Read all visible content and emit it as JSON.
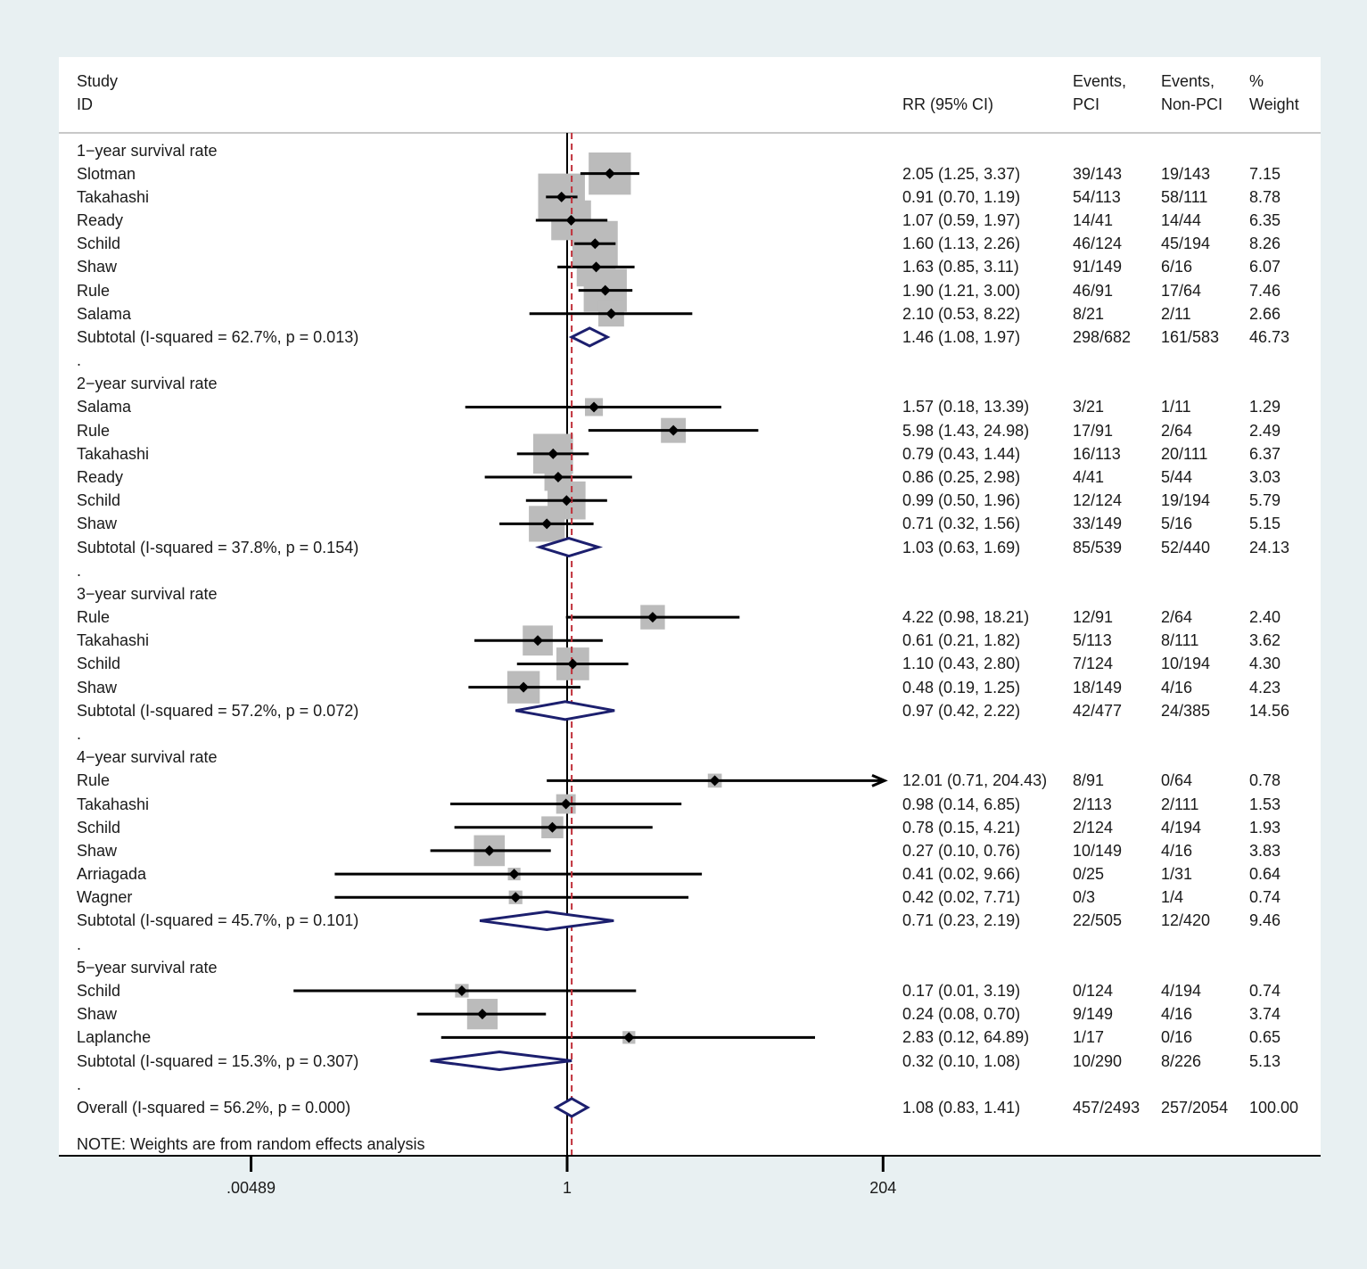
{
  "chart_data": {
    "type": "forest",
    "headers": {
      "study_line1": "Study",
      "study_line2": "ID",
      "rr": "RR (95% CI)",
      "events_pci_line1": "Events,",
      "events_pci_line2": "PCI",
      "events_nonpci_line1": "Events,",
      "events_nonpci_line2": "Non-PCI",
      "weight_line1": "%",
      "weight_line2": "Weight"
    },
    "x_scale": "log",
    "x_ticks": [
      {
        "value": 0.00489,
        "label": ".00489"
      },
      {
        "value": 1,
        "label": "1"
      },
      {
        "value": 204,
        "label": "204"
      }
    ],
    "reference_line": 1,
    "overall_line": 1.08,
    "rows": [
      {
        "kind": "group",
        "label": "1−year survival rate"
      },
      {
        "kind": "study",
        "label": "Slotman",
        "rr": 2.05,
        "lo": 1.25,
        "hi": 3.37,
        "ci_text": "2.05 (1.25, 3.37)",
        "ev_pci": "39/143",
        "ev_non": "19/143",
        "weight": "7.15",
        "w": 7.15
      },
      {
        "kind": "study",
        "label": "Takahashi",
        "rr": 0.91,
        "lo": 0.7,
        "hi": 1.19,
        "ci_text": "0.91 (0.70, 1.19)",
        "ev_pci": "54/113",
        "ev_non": "58/111",
        "weight": "8.78",
        "w": 8.78
      },
      {
        "kind": "study",
        "label": "Ready",
        "rr": 1.07,
        "lo": 0.59,
        "hi": 1.97,
        "ci_text": "1.07 (0.59, 1.97)",
        "ev_pci": "14/41",
        "ev_non": "14/44",
        "weight": "6.35",
        "w": 6.35
      },
      {
        "kind": "study",
        "label": "Schild",
        "rr": 1.6,
        "lo": 1.13,
        "hi": 2.26,
        "ci_text": "1.60 (1.13, 2.26)",
        "ev_pci": "46/124",
        "ev_non": "45/194",
        "weight": "8.26",
        "w": 8.26
      },
      {
        "kind": "study",
        "label": "Shaw",
        "rr": 1.63,
        "lo": 0.85,
        "hi": 3.11,
        "ci_text": "1.63 (0.85, 3.11)",
        "ev_pci": "91/149",
        "ev_non": "6/16",
        "weight": "6.07",
        "w": 6.07
      },
      {
        "kind": "study",
        "label": "Rule",
        "rr": 1.9,
        "lo": 1.21,
        "hi": 3.0,
        "ci_text": "1.90 (1.21, 3.00)",
        "ev_pci": "46/91",
        "ev_non": "17/64",
        "weight": "7.46",
        "w": 7.46
      },
      {
        "kind": "study",
        "label": "Salama",
        "rr": 2.1,
        "lo": 0.53,
        "hi": 8.22,
        "ci_text": "2.10 (0.53, 8.22)",
        "ev_pci": "8/21",
        "ev_non": "2/11",
        "weight": "2.66",
        "w": 2.66
      },
      {
        "kind": "subtotal",
        "label": "Subtotal  (I-squared = 62.7%, p = 0.013)",
        "rr": 1.46,
        "lo": 1.08,
        "hi": 1.97,
        "ci_text": "1.46 (1.08, 1.97)",
        "ev_pci": "298/682",
        "ev_non": "161/583",
        "weight": "46.73"
      },
      {
        "kind": "spacer",
        "label": "."
      },
      {
        "kind": "group",
        "label": "2−year survival rate"
      },
      {
        "kind": "study",
        "label": "Salama",
        "rr": 1.57,
        "lo": 0.18,
        "hi": 13.39,
        "ci_text": "1.57 (0.18, 13.39)",
        "ev_pci": "3/21",
        "ev_non": "1/11",
        "weight": "1.29",
        "w": 1.29
      },
      {
        "kind": "study",
        "label": "Rule",
        "rr": 5.98,
        "lo": 1.43,
        "hi": 24.98,
        "ci_text": "5.98 (1.43, 24.98)",
        "ev_pci": "17/91",
        "ev_non": "2/64",
        "weight": "2.49",
        "w": 2.49
      },
      {
        "kind": "study",
        "label": "Takahashi",
        "rr": 0.79,
        "lo": 0.43,
        "hi": 1.44,
        "ci_text": "0.79 (0.43, 1.44)",
        "ev_pci": "16/113",
        "ev_non": "20/111",
        "weight": "6.37",
        "w": 6.37
      },
      {
        "kind": "study",
        "label": "Ready",
        "rr": 0.86,
        "lo": 0.25,
        "hi": 2.98,
        "ci_text": "0.86 (0.25, 2.98)",
        "ev_pci": "4/41",
        "ev_non": "5/44",
        "weight": "3.03",
        "w": 3.03
      },
      {
        "kind": "study",
        "label": "Schild",
        "rr": 0.99,
        "lo": 0.5,
        "hi": 1.96,
        "ci_text": "0.99 (0.50, 1.96)",
        "ev_pci": "12/124",
        "ev_non": "19/194",
        "weight": "5.79",
        "w": 5.79
      },
      {
        "kind": "study",
        "label": "Shaw",
        "rr": 0.71,
        "lo": 0.32,
        "hi": 1.56,
        "ci_text": "0.71 (0.32, 1.56)",
        "ev_pci": "33/149",
        "ev_non": "5/16",
        "weight": "5.15",
        "w": 5.15
      },
      {
        "kind": "subtotal",
        "label": "Subtotal  (I-squared = 37.8%, p = 0.154)",
        "rr": 1.03,
        "lo": 0.63,
        "hi": 1.69,
        "ci_text": "1.03 (0.63, 1.69)",
        "ev_pci": "85/539",
        "ev_non": "52/440",
        "weight": "24.13"
      },
      {
        "kind": "spacer",
        "label": "."
      },
      {
        "kind": "group",
        "label": "3−year survival rate"
      },
      {
        "kind": "study",
        "label": "Rule",
        "rr": 4.22,
        "lo": 0.98,
        "hi": 18.21,
        "ci_text": "4.22 (0.98, 18.21)",
        "ev_pci": "12/91",
        "ev_non": "2/64",
        "weight": "2.40",
        "w": 2.4
      },
      {
        "kind": "study",
        "label": "Takahashi",
        "rr": 0.61,
        "lo": 0.21,
        "hi": 1.82,
        "ci_text": "0.61 (0.21, 1.82)",
        "ev_pci": "5/113",
        "ev_non": "8/111",
        "weight": "3.62",
        "w": 3.62
      },
      {
        "kind": "study",
        "label": "Schild",
        "rr": 1.1,
        "lo": 0.43,
        "hi": 2.8,
        "ci_text": "1.10 (0.43, 2.80)",
        "ev_pci": "7/124",
        "ev_non": "10/194",
        "weight": "4.30",
        "w": 4.3
      },
      {
        "kind": "study",
        "label": "Shaw",
        "rr": 0.48,
        "lo": 0.19,
        "hi": 1.25,
        "ci_text": "0.48 (0.19, 1.25)",
        "ev_pci": "18/149",
        "ev_non": "4/16",
        "weight": "4.23",
        "w": 4.23
      },
      {
        "kind": "subtotal",
        "label": "Subtotal  (I-squared = 57.2%, p = 0.072)",
        "rr": 0.97,
        "lo": 0.42,
        "hi": 2.22,
        "ci_text": "0.97 (0.42, 2.22)",
        "ev_pci": "42/477",
        "ev_non": "24/385",
        "weight": "14.56"
      },
      {
        "kind": "spacer",
        "label": "."
      },
      {
        "kind": "group",
        "label": "4−year survival rate"
      },
      {
        "kind": "study",
        "label": "Rule",
        "rr": 12.01,
        "lo": 0.71,
        "hi": 204.43,
        "ci_text": "12.01 (0.71, 204.43)",
        "ev_pci": "8/91",
        "ev_non": "0/64",
        "weight": "0.78",
        "w": 0.78,
        "arrow_right": true
      },
      {
        "kind": "study",
        "label": "Takahashi",
        "rr": 0.98,
        "lo": 0.14,
        "hi": 6.85,
        "ci_text": "0.98 (0.14, 6.85)",
        "ev_pci": "2/113",
        "ev_non": "2/111",
        "weight": "1.53",
        "w": 1.53
      },
      {
        "kind": "study",
        "label": "Schild",
        "rr": 0.78,
        "lo": 0.15,
        "hi": 4.21,
        "ci_text": "0.78 (0.15, 4.21)",
        "ev_pci": "2/124",
        "ev_non": "4/194",
        "weight": "1.93",
        "w": 1.93
      },
      {
        "kind": "study",
        "label": "Shaw",
        "rr": 0.27,
        "lo": 0.1,
        "hi": 0.76,
        "ci_text": "0.27 (0.10, 0.76)",
        "ev_pci": "10/149",
        "ev_non": "4/16",
        "weight": "3.83",
        "w": 3.83
      },
      {
        "kind": "study",
        "label": "Arriagada",
        "rr": 0.41,
        "lo": 0.02,
        "hi": 9.66,
        "ci_text": "0.41 (0.02, 9.66)",
        "ev_pci": "0/25",
        "ev_non": "1/31",
        "weight": "0.64",
        "w": 0.64
      },
      {
        "kind": "study",
        "label": "Wagner",
        "rr": 0.42,
        "lo": 0.02,
        "hi": 7.71,
        "ci_text": "0.42 (0.02, 7.71)",
        "ev_pci": "0/3",
        "ev_non": "1/4",
        "weight": "0.74",
        "w": 0.74
      },
      {
        "kind": "subtotal",
        "label": "Subtotal  (I-squared = 45.7%, p = 0.101)",
        "rr": 0.71,
        "lo": 0.23,
        "hi": 2.19,
        "ci_text": "0.71 (0.23, 2.19)",
        "ev_pci": "22/505",
        "ev_non": "12/420",
        "weight": "9.46"
      },
      {
        "kind": "spacer",
        "label": "."
      },
      {
        "kind": "group",
        "label": "5−year survival rate"
      },
      {
        "kind": "study",
        "label": "Schild",
        "rr": 0.17,
        "lo": 0.01,
        "hi": 3.19,
        "ci_text": "0.17 (0.01, 3.19)",
        "ev_pci": "0/124",
        "ev_non": "4/194",
        "weight": "0.74",
        "w": 0.74
      },
      {
        "kind": "study",
        "label": "Shaw",
        "rr": 0.24,
        "lo": 0.08,
        "hi": 0.7,
        "ci_text": "0.24 (0.08, 0.70)",
        "ev_pci": "9/149",
        "ev_non": "4/16",
        "weight": "3.74",
        "w": 3.74
      },
      {
        "kind": "study",
        "label": "Laplanche",
        "rr": 2.83,
        "lo": 0.12,
        "hi": 64.89,
        "ci_text": "2.83 (0.12, 64.89)",
        "ev_pci": "1/17",
        "ev_non": "0/16",
        "weight": "0.65",
        "w": 0.65
      },
      {
        "kind": "subtotal",
        "label": "Subtotal  (I-squared = 15.3%, p = 0.307)",
        "rr": 0.32,
        "lo": 0.1,
        "hi": 1.08,
        "ci_text": "0.32 (0.10, 1.08)",
        "ev_pci": "10/290",
        "ev_non": "8/226",
        "weight": "5.13"
      },
      {
        "kind": "spacer",
        "label": "."
      },
      {
        "kind": "overall",
        "label": "Overall  (I-squared = 56.2%, p = 0.000)",
        "rr": 1.08,
        "lo": 0.83,
        "hi": 1.41,
        "ci_text": "1.08 (0.83, 1.41)",
        "ev_pci": "457/2493",
        "ev_non": "257/2054",
        "weight": "100.00"
      }
    ],
    "note": "NOTE: Weights are from random effects analysis"
  }
}
